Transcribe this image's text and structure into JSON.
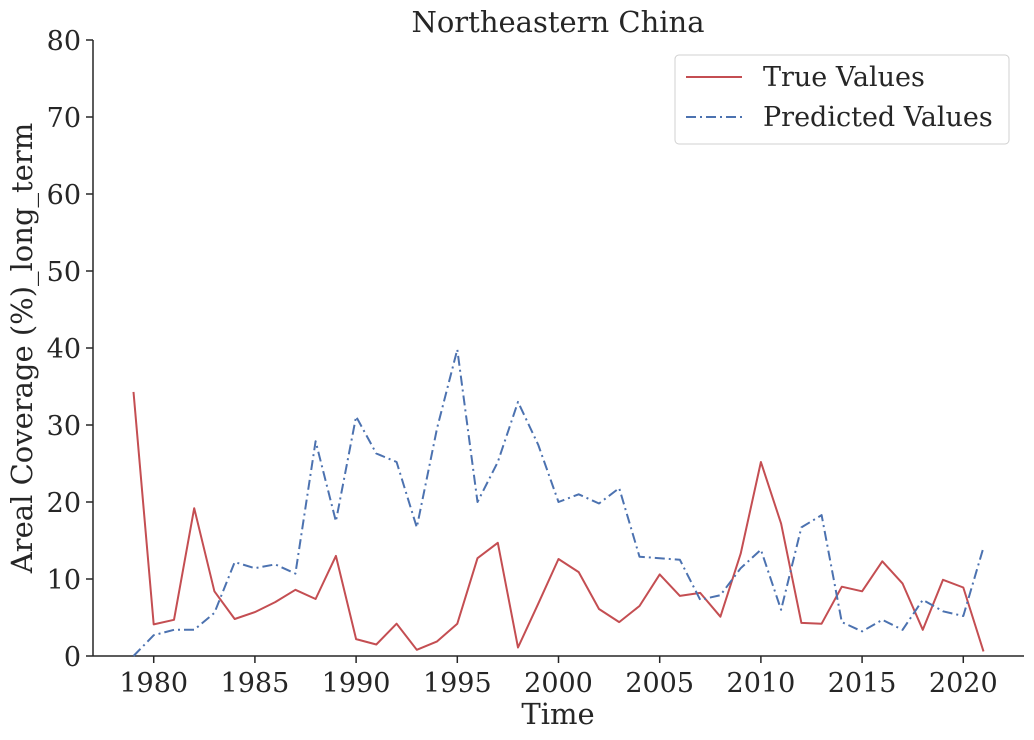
{
  "chart_data": {
    "type": "line",
    "title": "Northeastern China",
    "xlabel": "Time",
    "ylabel": "Areal Coverage (%)_long_term",
    "xlim": [
      1977,
      2023
    ],
    "ylim": [
      0,
      80
    ],
    "xticks": [
      1980,
      1985,
      1990,
      1995,
      2000,
      2005,
      2010,
      2015,
      2020
    ],
    "yticks": [
      0,
      10,
      20,
      30,
      40,
      50,
      60,
      70,
      80
    ],
    "grid": false,
    "legend_position": "top-right",
    "x": [
      1979,
      1980,
      1981,
      1982,
      1983,
      1984,
      1985,
      1986,
      1987,
      1988,
      1989,
      1990,
      1991,
      1992,
      1993,
      1994,
      1995,
      1996,
      1997,
      1998,
      1999,
      2000,
      2001,
      2002,
      2003,
      2004,
      2005,
      2006,
      2007,
      2008,
      2009,
      2010,
      2011,
      2012,
      2013,
      2014,
      2015,
      2016,
      2017,
      2018,
      2019,
      2020,
      2021
    ],
    "series": [
      {
        "name": "True Values",
        "color": "#c44e52",
        "style": "solid",
        "values": [
          34.3,
          4.1,
          4.7,
          19.2,
          8.4,
          4.8,
          5.7,
          7.0,
          8.6,
          7.4,
          13.0,
          2.2,
          1.5,
          4.2,
          0.8,
          1.9,
          4.2,
          12.7,
          14.7,
          1.1,
          6.8,
          12.6,
          10.9,
          6.1,
          4.4,
          6.5,
          10.6,
          7.8,
          8.2,
          5.1,
          13.3,
          25.2,
          17.2,
          4.3,
          4.2,
          9.0,
          8.4,
          12.3,
          9.4,
          3.4,
          9.9,
          8.9,
          0.6
        ]
      },
      {
        "name": "Predicted Values",
        "color": "#4c72b0",
        "style": "dashdot",
        "values": [
          0.0,
          2.7,
          3.4,
          3.4,
          5.6,
          12.2,
          11.4,
          11.9,
          10.7,
          27.9,
          17.5,
          31.1,
          26.3,
          25.2,
          16.7,
          29.6,
          39.8,
          20.0,
          25.2,
          33.0,
          27.4,
          20.0,
          21.0,
          19.8,
          21.8,
          12.9,
          12.7,
          12.5,
          7.3,
          7.9,
          11.4,
          13.8,
          6.0,
          16.7,
          18.3,
          4.4,
          3.2,
          4.7,
          3.4,
          7.3,
          5.8,
          5.2,
          14.1
        ]
      }
    ]
  }
}
